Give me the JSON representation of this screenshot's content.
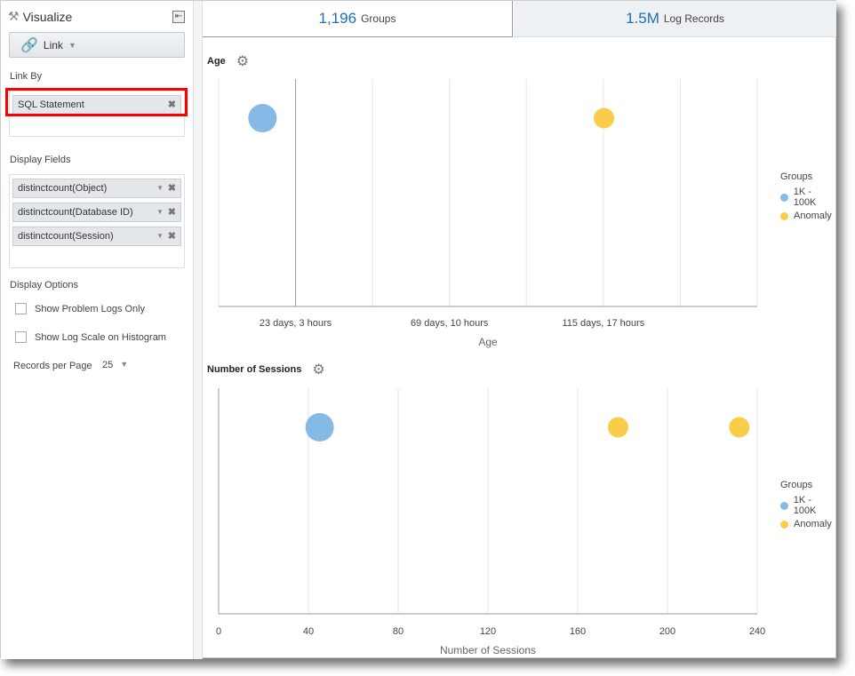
{
  "sidebar": {
    "title": "Visualize",
    "link_button": "Link",
    "link_by_label": "Link By",
    "link_by_items": [
      "SQL Statement"
    ],
    "display_fields_label": "Display Fields",
    "display_fields": [
      "distinctcount(Object)",
      "distinctcount(Database ID)",
      "distinctcount(Session)"
    ],
    "display_options_label": "Display Options",
    "show_problem_logs": "Show Problem Logs Only",
    "show_log_scale": "Show Log Scale on Histogram",
    "records_per_page_label": "Records per Page",
    "records_per_page": "25"
  },
  "tabs": [
    {
      "count": "1,196",
      "label": "Groups",
      "active": true
    },
    {
      "count": "1.5M",
      "label": "Log Records",
      "active": false
    }
  ],
  "colors": {
    "blue": "#85b9e6",
    "yellow": "#f9cc4a",
    "accent": "#1e6fb5",
    "highlight": "#ff0000"
  },
  "chart_data": [
    {
      "type": "scatter",
      "title": "Age",
      "xlabel": "Age",
      "tick_labels": [
        "23 days, 3 hours",
        "69 days, 10 hours",
        "115 days, 17 hours"
      ],
      "tick_values_days": [
        23.125,
        69.417,
        115.708
      ],
      "xlim_days": [
        0,
        162
      ],
      "legend_title": "Groups",
      "legend": [
        "1K - 100K",
        "Anomaly"
      ],
      "legend_placement": "right",
      "points": [
        {
          "series": "1K - 100K",
          "x_days": 13.2
        },
        {
          "series": "Anomaly",
          "x_days": 115.9
        }
      ]
    },
    {
      "type": "scatter",
      "title": "Number of Sessions",
      "xlabel": "Number of Sessions",
      "tick_labels": [
        "0",
        "40",
        "80",
        "120",
        "160",
        "200",
        "240"
      ],
      "tick_values": [
        0,
        40,
        80,
        120,
        160,
        200,
        240
      ],
      "xlim": [
        0,
        240
      ],
      "legend_title": "Groups",
      "legend": [
        "1K - 100K",
        "Anomaly"
      ],
      "legend_placement": "right",
      "points": [
        {
          "series": "1K - 100K",
          "x": 45
        },
        {
          "series": "Anomaly",
          "x": 178
        },
        {
          "series": "Anomaly",
          "x": 232
        }
      ]
    }
  ]
}
